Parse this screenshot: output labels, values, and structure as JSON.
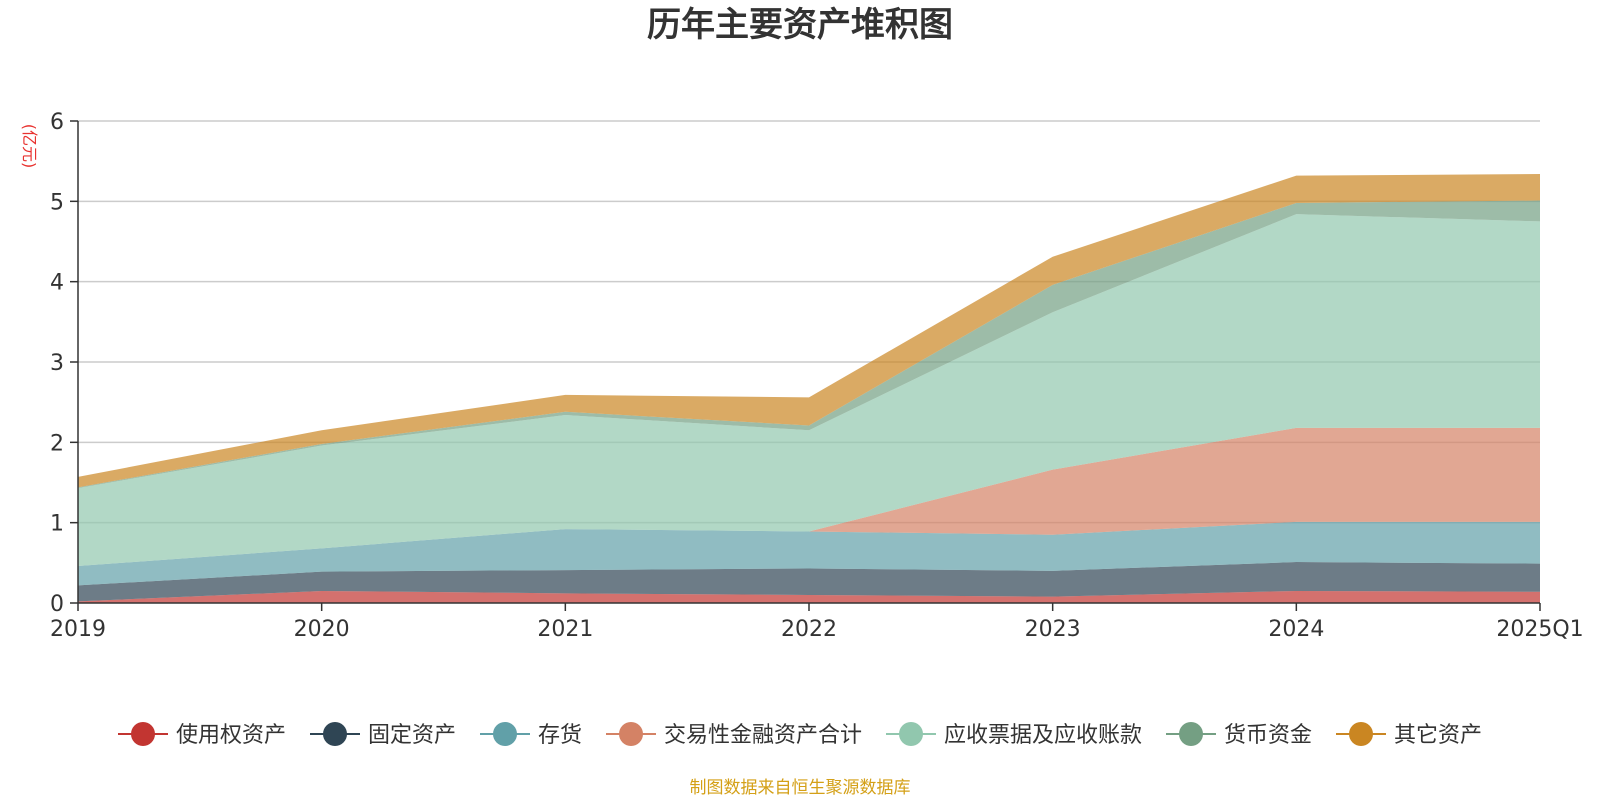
{
  "chart_data": {
    "type": "area",
    "stacked": true,
    "title": "历年主要资产堆积图",
    "ylabel": "(亿元)",
    "xlabel": "",
    "categories": [
      "2019",
      "2020",
      "2021",
      "2022",
      "2023",
      "2024",
      "2025Q1"
    ],
    "ylim": [
      0,
      6
    ],
    "yticks": [
      0,
      1,
      2,
      3,
      4,
      5,
      6
    ],
    "grid": true,
    "legend_position": "bottom",
    "series": [
      {
        "name": "使用权资产",
        "color": "#c23531",
        "values": [
          0.02,
          0.15,
          0.12,
          0.1,
          0.08,
          0.15,
          0.14
        ]
      },
      {
        "name": "固定资产",
        "color": "#2f4554",
        "values": [
          0.2,
          0.24,
          0.29,
          0.33,
          0.32,
          0.36,
          0.35
        ]
      },
      {
        "name": "存货",
        "color": "#61a0a8",
        "values": [
          0.24,
          0.29,
          0.51,
          0.46,
          0.45,
          0.5,
          0.52
        ]
      },
      {
        "name": "交易性金融资产合计",
        "color": "#d48265",
        "values": [
          0.0,
          0.0,
          0.0,
          0.0,
          0.81,
          1.17,
          1.17
        ]
      },
      {
        "name": "应收票据及应收账款",
        "color": "#91c7ae",
        "values": [
          0.97,
          1.28,
          1.42,
          1.26,
          1.96,
          2.66,
          2.57
        ]
      },
      {
        "name": "货币资金",
        "color": "#749f83",
        "values": [
          0.01,
          0.02,
          0.04,
          0.06,
          0.34,
          0.14,
          0.26
        ]
      },
      {
        "name": "其它资产",
        "color": "#ca8622",
        "values": [
          0.13,
          0.17,
          0.21,
          0.35,
          0.35,
          0.34,
          0.33
        ]
      }
    ]
  },
  "source": "制图数据来自恒生聚源数据库"
}
